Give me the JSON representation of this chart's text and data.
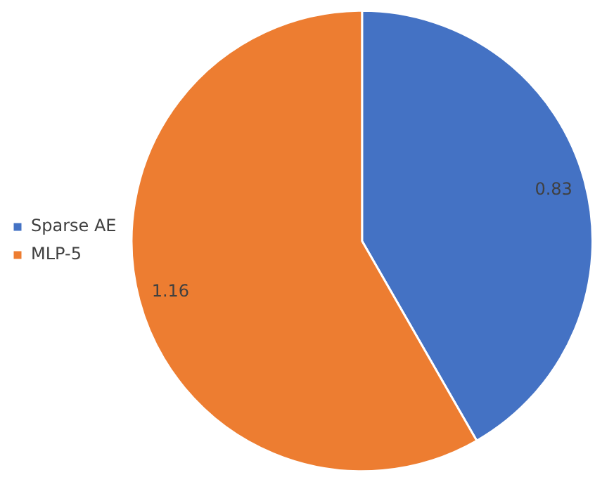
{
  "chart_data": {
    "type": "pie",
    "categories": [
      "Sparse AE",
      "MLP-5"
    ],
    "values": [
      0.83,
      1.16
    ],
    "colors": [
      "#4472c4",
      "#ed7d31"
    ],
    "legend": "left",
    "data_labels": true
  }
}
